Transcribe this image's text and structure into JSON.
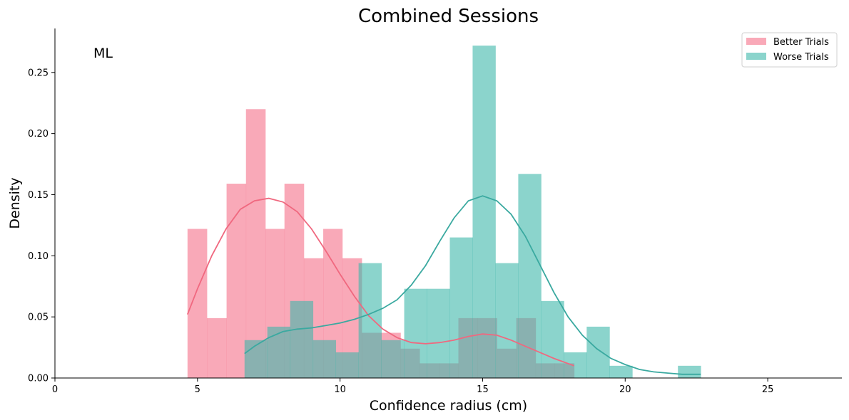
{
  "chart_data": {
    "type": "histogram",
    "title": "Combined Sessions",
    "xlabel": "Confidence radius (cm)",
    "ylabel": "Density",
    "annotation": "ML",
    "xlim": [
      0,
      27.6
    ],
    "ylim": [
      0,
      0.286
    ],
    "xticks": [
      0,
      5,
      10,
      15,
      20,
      25
    ],
    "xtick_labels": [
      "0",
      "5",
      "10",
      "15",
      "20",
      "25"
    ],
    "yticks": [
      0.0,
      0.05,
      0.1,
      0.15,
      0.2,
      0.25
    ],
    "ytick_labels": [
      "0.00",
      "0.05",
      "0.10",
      "0.15",
      "0.20",
      "0.25"
    ],
    "grid": false,
    "legend_position": "top-right",
    "series": [
      {
        "name": "Better Trials",
        "color": "#f7889d",
        "line_color": "#f0687f",
        "bins": [
          {
            "x0": 4.65,
            "x1": 5.33,
            "y": 0.122
          },
          {
            "x0": 5.33,
            "x1": 6.02,
            "y": 0.049
          },
          {
            "x0": 6.02,
            "x1": 6.7,
            "y": 0.159
          },
          {
            "x0": 6.7,
            "x1": 7.38,
            "y": 0.22
          },
          {
            "x0": 7.38,
            "x1": 8.05,
            "y": 0.122
          },
          {
            "x0": 8.05,
            "x1": 8.73,
            "y": 0.159
          },
          {
            "x0": 8.73,
            "x1": 9.41,
            "y": 0.098
          },
          {
            "x0": 9.41,
            "x1": 10.08,
            "y": 0.122
          },
          {
            "x0": 10.08,
            "x1": 10.76,
            "y": 0.098
          },
          {
            "x0": 10.76,
            "x1": 11.44,
            "y": 0.037
          },
          {
            "x0": 11.44,
            "x1": 12.12,
            "y": 0.037
          },
          {
            "x0": 12.12,
            "x1": 12.79,
            "y": 0.024
          },
          {
            "x0": 12.79,
            "x1": 13.47,
            "y": 0.012
          },
          {
            "x0": 13.47,
            "x1": 14.15,
            "y": 0.012
          },
          {
            "x0": 14.15,
            "x1": 14.82,
            "y": 0.049
          },
          {
            "x0": 14.82,
            "x1": 15.5,
            "y": 0.049
          },
          {
            "x0": 15.5,
            "x1": 16.18,
            "y": 0.024
          },
          {
            "x0": 16.18,
            "x1": 16.86,
            "y": 0.049
          },
          {
            "x0": 16.86,
            "x1": 17.53,
            "y": 0.012
          },
          {
            "x0": 17.53,
            "x1": 18.21,
            "y": 0.012
          }
        ],
        "kde": [
          [
            4.65,
            0.052
          ],
          [
            5.0,
            0.073
          ],
          [
            5.5,
            0.1
          ],
          [
            6.0,
            0.122
          ],
          [
            6.5,
            0.138
          ],
          [
            7.0,
            0.145
          ],
          [
            7.5,
            0.147
          ],
          [
            8.0,
            0.144
          ],
          [
            8.5,
            0.136
          ],
          [
            9.0,
            0.122
          ],
          [
            9.5,
            0.104
          ],
          [
            10.0,
            0.085
          ],
          [
            10.5,
            0.067
          ],
          [
            11.0,
            0.051
          ],
          [
            11.5,
            0.04
          ],
          [
            12.0,
            0.033
          ],
          [
            12.5,
            0.029
          ],
          [
            13.0,
            0.028
          ],
          [
            13.5,
            0.029
          ],
          [
            14.0,
            0.031
          ],
          [
            14.5,
            0.034
          ],
          [
            15.0,
            0.036
          ],
          [
            15.5,
            0.035
          ],
          [
            16.0,
            0.031
          ],
          [
            16.5,
            0.026
          ],
          [
            17.0,
            0.021
          ],
          [
            17.5,
            0.016
          ],
          [
            18.21,
            0.01
          ]
        ]
      },
      {
        "name": "Worse Trials",
        "color": "#3db8aa",
        "line_color": "#3aa9a0",
        "bins": [
          {
            "x0": 6.65,
            "x1": 7.45,
            "y": 0.031
          },
          {
            "x0": 7.45,
            "x1": 8.25,
            "y": 0.042
          },
          {
            "x0": 8.25,
            "x1": 9.05,
            "y": 0.063
          },
          {
            "x0": 9.05,
            "x1": 9.85,
            "y": 0.031
          },
          {
            "x0": 9.85,
            "x1": 10.65,
            "y": 0.021
          },
          {
            "x0": 10.65,
            "x1": 11.45,
            "y": 0.094
          },
          {
            "x0": 11.45,
            "x1": 12.25,
            "y": 0.031
          },
          {
            "x0": 12.25,
            "x1": 13.05,
            "y": 0.073
          },
          {
            "x0": 13.05,
            "x1": 13.85,
            "y": 0.073
          },
          {
            "x0": 13.85,
            "x1": 14.65,
            "y": 0.115
          },
          {
            "x0": 14.65,
            "x1": 15.45,
            "y": 0.272
          },
          {
            "x0": 15.45,
            "x1": 16.25,
            "y": 0.094
          },
          {
            "x0": 16.25,
            "x1": 17.05,
            "y": 0.167
          },
          {
            "x0": 17.05,
            "x1": 17.85,
            "y": 0.063
          },
          {
            "x0": 17.85,
            "x1": 18.65,
            "y": 0.021
          },
          {
            "x0": 18.65,
            "x1": 19.45,
            "y": 0.042
          },
          {
            "x0": 19.45,
            "x1": 20.25,
            "y": 0.01
          },
          {
            "x0": 20.25,
            "x1": 21.05,
            "y": 0.0
          },
          {
            "x0": 21.05,
            "x1": 21.85,
            "y": 0.0
          },
          {
            "x0": 21.85,
            "x1": 22.65,
            "y": 0.01
          }
        ],
        "kde": [
          [
            6.65,
            0.02
          ],
          [
            7.0,
            0.026
          ],
          [
            7.5,
            0.033
          ],
          [
            8.0,
            0.038
          ],
          [
            8.5,
            0.04
          ],
          [
            9.0,
            0.041
          ],
          [
            9.5,
            0.043
          ],
          [
            10.0,
            0.045
          ],
          [
            10.5,
            0.048
          ],
          [
            11.0,
            0.052
          ],
          [
            11.5,
            0.057
          ],
          [
            12.0,
            0.064
          ],
          [
            12.5,
            0.076
          ],
          [
            13.0,
            0.092
          ],
          [
            13.5,
            0.112
          ],
          [
            14.0,
            0.131
          ],
          [
            14.5,
            0.145
          ],
          [
            15.0,
            0.149
          ],
          [
            15.5,
            0.145
          ],
          [
            16.0,
            0.134
          ],
          [
            16.5,
            0.116
          ],
          [
            17.0,
            0.093
          ],
          [
            17.5,
            0.07
          ],
          [
            18.0,
            0.05
          ],
          [
            18.5,
            0.035
          ],
          [
            19.0,
            0.024
          ],
          [
            19.5,
            0.016
          ],
          [
            20.0,
            0.011
          ],
          [
            20.5,
            0.007
          ],
          [
            21.0,
            0.005
          ],
          [
            21.5,
            0.004
          ],
          [
            22.0,
            0.003
          ],
          [
            22.65,
            0.003
          ]
        ]
      }
    ]
  }
}
